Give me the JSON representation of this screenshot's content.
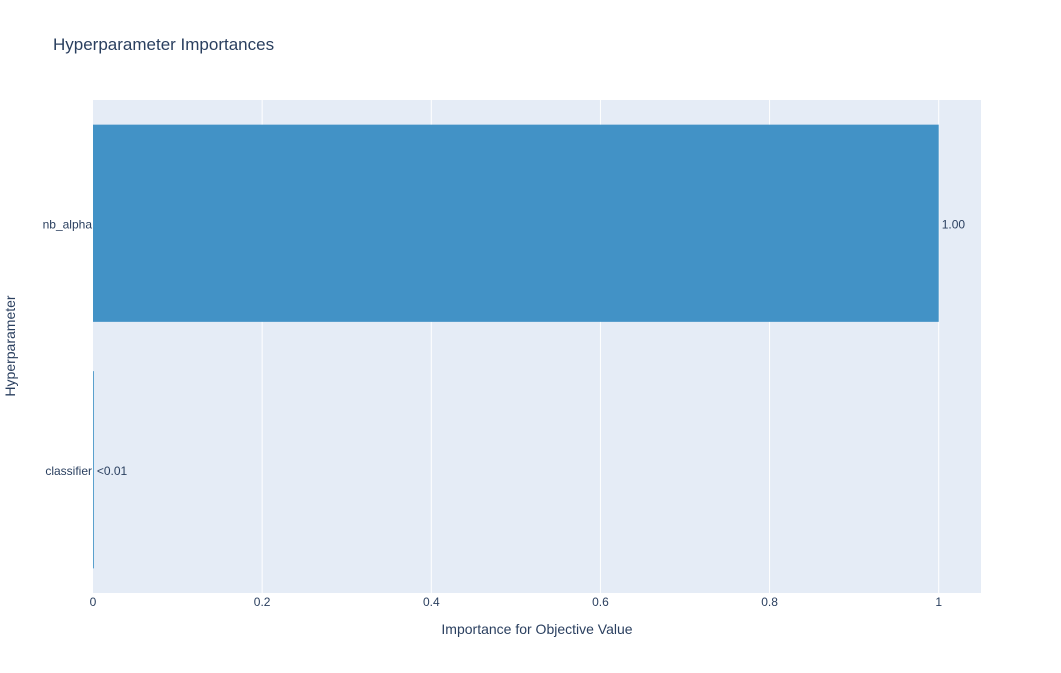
{
  "chart_data": {
    "type": "bar",
    "orientation": "horizontal",
    "title": "Hyperparameter Importances",
    "xlabel": "Importance for Objective Value",
    "ylabel": "Hyperparameter",
    "categories": [
      "classifier",
      "nb_alpha"
    ],
    "values": [
      0.001,
      1.0
    ],
    "data_labels": [
      "<0.01",
      "1.00"
    ],
    "xlim": [
      0,
      1.05
    ],
    "x_ticks": [
      0,
      0.2,
      0.4,
      0.6,
      0.8,
      1
    ],
    "x_tick_labels": [
      "0",
      "0.2",
      "0.4",
      "0.6",
      "0.8",
      "1"
    ],
    "grid": true,
    "legend": "none",
    "colors": {
      "bar": "#4292c6",
      "plot_bg": "#e5ecf6",
      "grid": "#ffffff",
      "text": "#2a3f5f"
    }
  }
}
